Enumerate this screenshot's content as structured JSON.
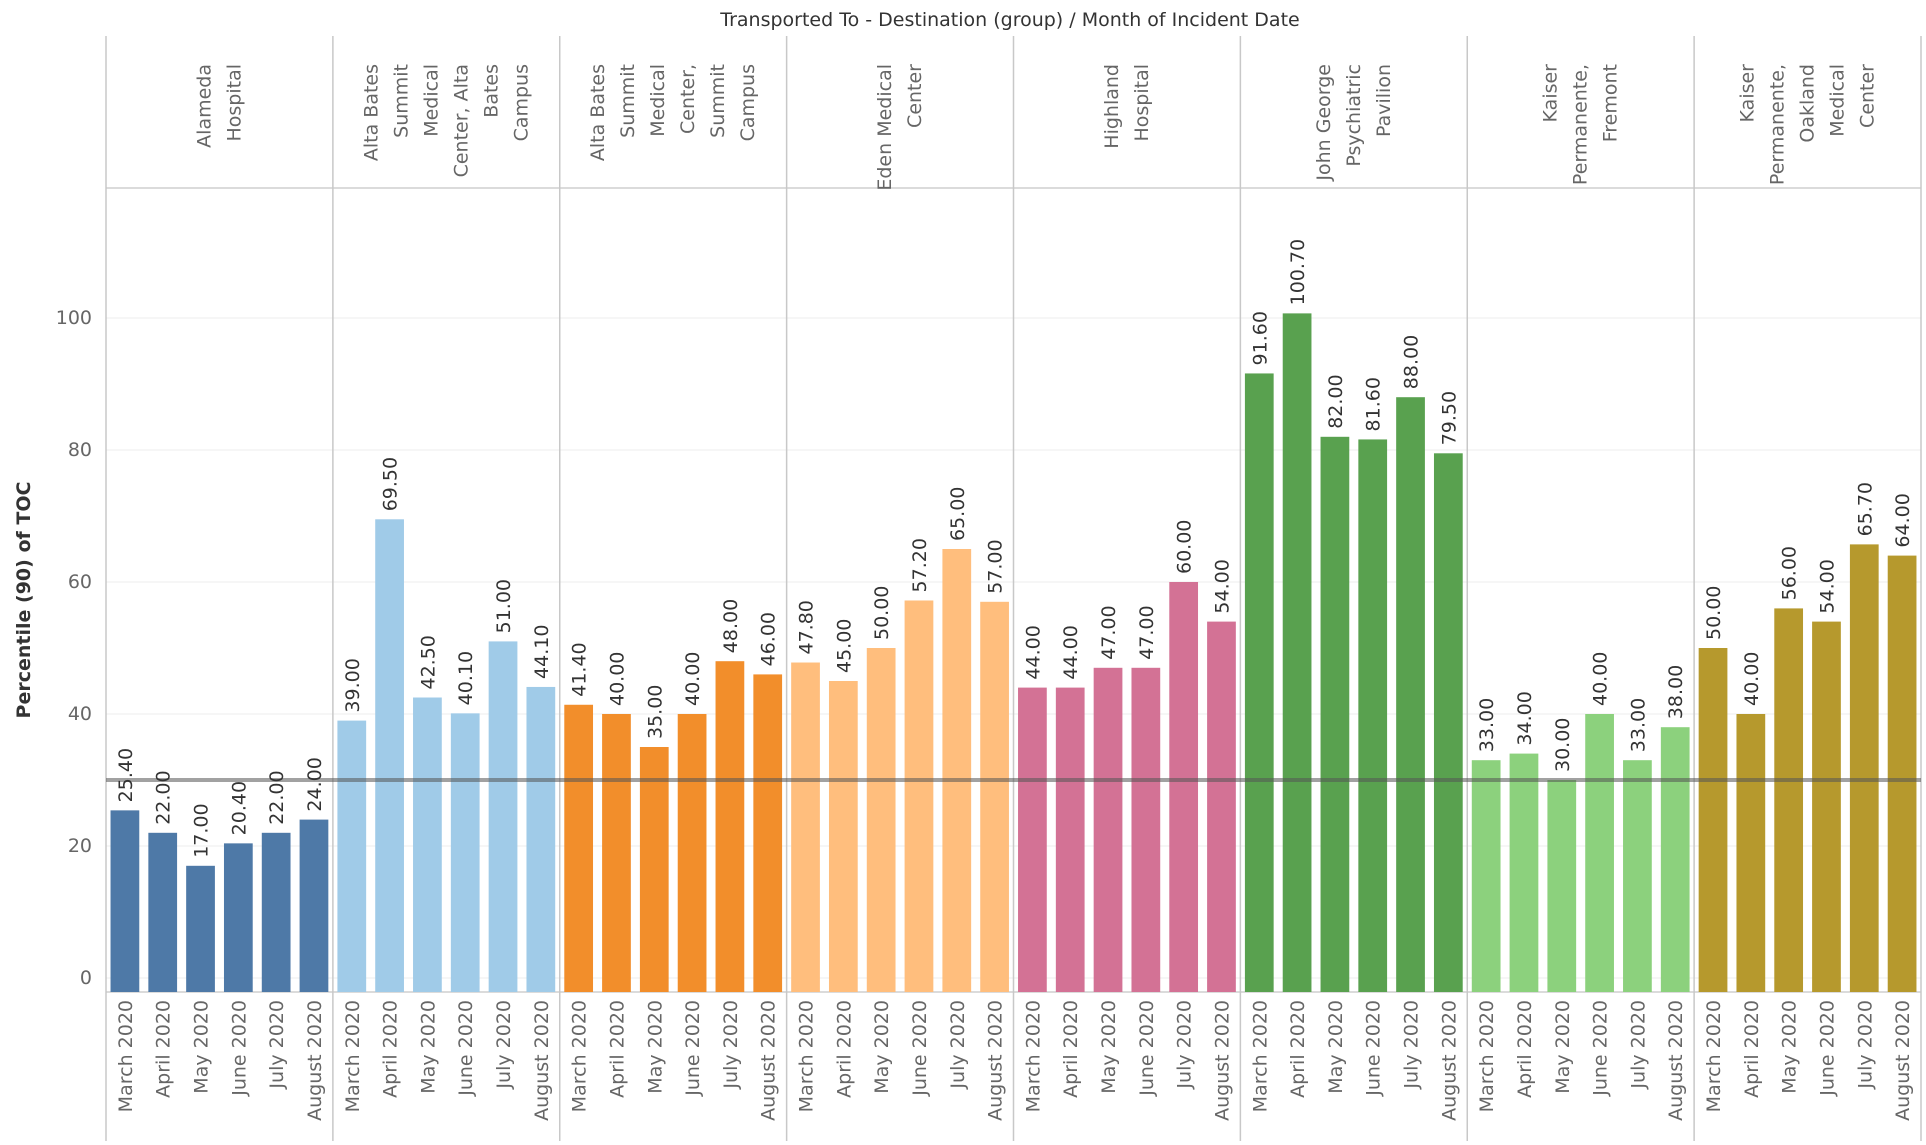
{
  "chart_data": {
    "type": "bar",
    "title": "Transported To - Destination (group)  /  Month of Incident Date",
    "ylabel": "Percentile (90) of TOC",
    "ylim": [
      0,
      120
    ],
    "yticks": [
      0,
      20,
      40,
      60,
      80,
      100
    ],
    "reference_line": 30,
    "months": [
      "March 2020",
      "April 2020",
      "May 2020",
      "June 2020",
      "July 2020",
      "August 2020"
    ],
    "groups": [
      {
        "label_lines": [
          "Alameda",
          "Hospital"
        ],
        "color": "#4e79a7",
        "values": [
          25.4,
          22.0,
          17.0,
          20.4,
          22.0,
          24.0
        ],
        "labels": [
          "25.40",
          "22.00",
          "17.00",
          "20.40",
          "22.00",
          "24.00"
        ]
      },
      {
        "label_lines": [
          "Alta Bates",
          "Summit",
          "Medical",
          "Center, Alta",
          "Bates",
          "Campus"
        ],
        "color": "#a0cbe8",
        "values": [
          39.0,
          69.5,
          42.5,
          40.1,
          51.0,
          44.1
        ],
        "labels": [
          "39.00",
          "69.50",
          "42.50",
          "40.10",
          "51.00",
          "44.10"
        ]
      },
      {
        "label_lines": [
          "Alta Bates",
          "Summit",
          "Medical",
          "Center,",
          "Summit",
          "Campus"
        ],
        "color": "#f28e2b",
        "values": [
          41.4,
          40.0,
          35.0,
          40.0,
          48.0,
          46.0
        ],
        "labels": [
          "41.40",
          "40.00",
          "35.00",
          "40.00",
          "48.00",
          "46.00"
        ]
      },
      {
        "label_lines": [
          "Eden Medical",
          "Center"
        ],
        "color": "#ffbe7d",
        "values": [
          47.8,
          45.0,
          50.0,
          57.2,
          65.0,
          57.0
        ],
        "labels": [
          "47.80",
          "45.00",
          "50.00",
          "57.20",
          "65.00",
          "57.00"
        ]
      },
      {
        "label_lines": [
          "Highland",
          "Hospital"
        ],
        "color": "#d37295",
        "values": [
          44.0,
          44.0,
          47.0,
          47.0,
          60.0,
          54.0
        ],
        "labels": [
          "44.00",
          "44.00",
          "47.00",
          "47.00",
          "60.00",
          "54.00"
        ]
      },
      {
        "label_lines": [
          "John George",
          "Psychiatric",
          "Pavilion"
        ],
        "color": "#59a14f",
        "values": [
          91.6,
          100.7,
          82.0,
          81.6,
          88.0,
          79.5
        ],
        "labels": [
          "91.60",
          "100.70",
          "82.00",
          "81.60",
          "88.00",
          "79.50"
        ]
      },
      {
        "label_lines": [
          "Kaiser",
          "Permanente,",
          "Fremont"
        ],
        "color": "#8cd17d",
        "values": [
          33.0,
          34.0,
          30.0,
          40.0,
          33.0,
          38.0
        ],
        "labels": [
          "33.00",
          "34.00",
          "30.00",
          "40.00",
          "33.00",
          "38.00"
        ]
      },
      {
        "label_lines": [
          "Kaiser",
          "Permanente,",
          "Oakland",
          "Medical",
          "Center"
        ],
        "color": "#b6992d",
        "values": [
          50.0,
          40.0,
          56.0,
          54.0,
          65.7,
          64.0
        ],
        "labels": [
          "50.00",
          "40.00",
          "56.00",
          "54.00",
          "65.70",
          "64.00"
        ]
      }
    ]
  }
}
